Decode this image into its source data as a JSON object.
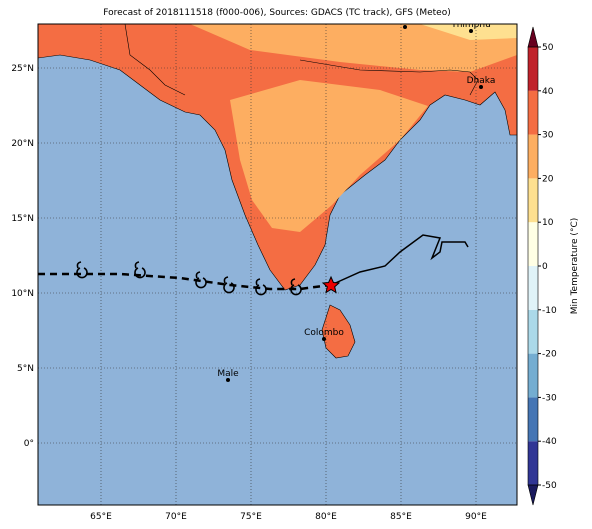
{
  "title": "Forecast of 2018111518 (f000-006), Sources: GDACS (TC track), GFS (Meteo)",
  "lat_labels": [
    "25°N",
    "20°N",
    "15°N",
    "10°N",
    "5°N",
    "0°"
  ],
  "lon_labels": [
    "65°E",
    "70°E",
    "75°E",
    "80°E",
    "85°E",
    "90°E"
  ],
  "cities": [
    {
      "name": "Thimphu"
    },
    {
      "name": "Dhaka"
    },
    {
      "name": "Colombo"
    },
    {
      "name": "Male"
    }
  ],
  "colorbar": {
    "label": "Min Temperature (°C)",
    "ticks": [
      -50,
      -40,
      -30,
      -20,
      -10,
      0,
      10,
      20,
      30,
      40,
      50
    ]
  }
}
